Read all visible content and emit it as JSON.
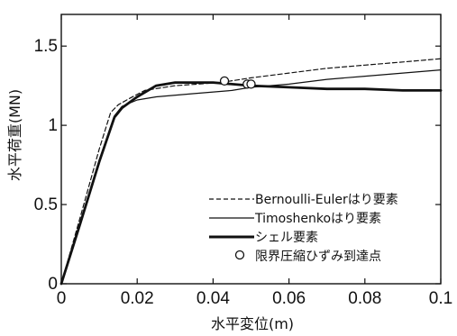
{
  "chart_data": {
    "type": "line",
    "title": "",
    "xlabel": "水平変位(m)",
    "ylabel": "水平荷重(MN)",
    "xlim": [
      0,
      0.1
    ],
    "ylim": [
      0,
      1.7
    ],
    "x_ticks": [
      0,
      0.02,
      0.04,
      0.06,
      0.08,
      0.1
    ],
    "x_tick_labels": [
      "0",
      "0.02",
      "0.04",
      "0.06",
      "0.08",
      "0.1"
    ],
    "y_ticks": [
      0,
      0.5,
      1,
      1.5
    ],
    "y_tick_labels": [
      "0",
      "0.5",
      "1",
      "1.5"
    ],
    "grid": false,
    "legend_position": "lower-right",
    "series": [
      {
        "name": "Bernoulli-Eulerはり要素",
        "style": "dashed",
        "x": [
          0,
          0.005,
          0.01,
          0.013,
          0.015,
          0.018,
          0.022,
          0.03,
          0.042,
          0.05,
          0.06,
          0.07,
          0.08,
          0.09,
          0.1
        ],
        "y": [
          0,
          0.42,
          0.85,
          1.08,
          1.13,
          1.17,
          1.22,
          1.25,
          1.27,
          1.3,
          1.33,
          1.36,
          1.38,
          1.4,
          1.42
        ]
      },
      {
        "name": "Timoshenkoはり要素",
        "style": "thin-solid",
        "x": [
          0,
          0.005,
          0.01,
          0.014,
          0.016,
          0.02,
          0.025,
          0.035,
          0.045,
          0.05,
          0.06,
          0.07,
          0.08,
          0.09,
          0.1
        ],
        "y": [
          0,
          0.38,
          0.78,
          1.06,
          1.12,
          1.16,
          1.18,
          1.2,
          1.22,
          1.24,
          1.26,
          1.29,
          1.31,
          1.33,
          1.35
        ]
      },
      {
        "name": "シェル要素",
        "style": "thick-solid",
        "x": [
          0,
          0.005,
          0.01,
          0.014,
          0.016,
          0.02,
          0.025,
          0.03,
          0.035,
          0.04,
          0.045,
          0.05,
          0.06,
          0.07,
          0.08,
          0.09,
          0.1
        ],
        "y": [
          0,
          0.38,
          0.77,
          1.05,
          1.11,
          1.18,
          1.25,
          1.27,
          1.27,
          1.27,
          1.26,
          1.25,
          1.24,
          1.23,
          1.23,
          1.22,
          1.22
        ]
      }
    ],
    "markers": {
      "name": "限界圧縮ひずみ到達点",
      "symbol": "open-circle",
      "points": [
        {
          "x": 0.043,
          "y": 1.28
        },
        {
          "x": 0.049,
          "y": 1.26
        },
        {
          "x": 0.05,
          "y": 1.26
        }
      ]
    }
  }
}
